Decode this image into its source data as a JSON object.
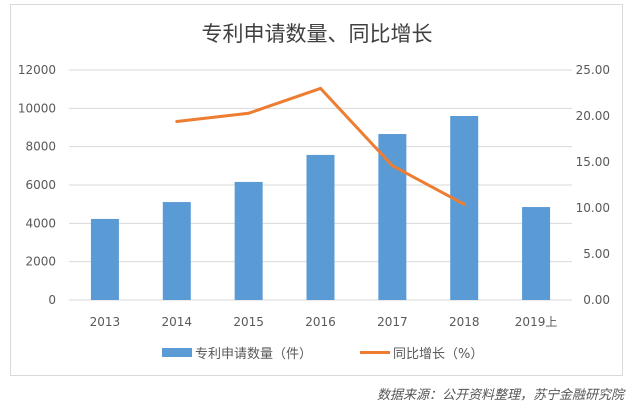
{
  "chart_data": {
    "type": "bar",
    "title": "专利申请数量、同比增长",
    "categories": [
      "2013",
      "2014",
      "2015",
      "2016",
      "2017",
      "2018",
      "2019上"
    ],
    "series": [
      {
        "name": "专利申请数量（件）",
        "type": "bar",
        "axis": "left",
        "color": "#5b9bd5",
        "values": [
          4230,
          5110,
          6160,
          7570,
          8660,
          9600,
          4850
        ]
      },
      {
        "name": "同比增长（%）",
        "type": "line",
        "axis": "right",
        "color": "#ed7d31",
        "values": [
          null,
          19.4,
          20.3,
          23.0,
          14.6,
          10.4,
          null
        ]
      }
    ],
    "yleft": {
      "range": [
        0,
        12000
      ],
      "ticks": [
        "0",
        "2000",
        "4000",
        "6000",
        "8000",
        "10000",
        "12000"
      ]
    },
    "yright": {
      "range": [
        0,
        25
      ],
      "ticks": [
        "0.00",
        "5.00",
        "10.00",
        "15.00",
        "20.00",
        "25.00"
      ]
    },
    "grid": true,
    "legend": "bottom"
  },
  "source": "数据来源：公开资料整理，苏宁金融研究院"
}
